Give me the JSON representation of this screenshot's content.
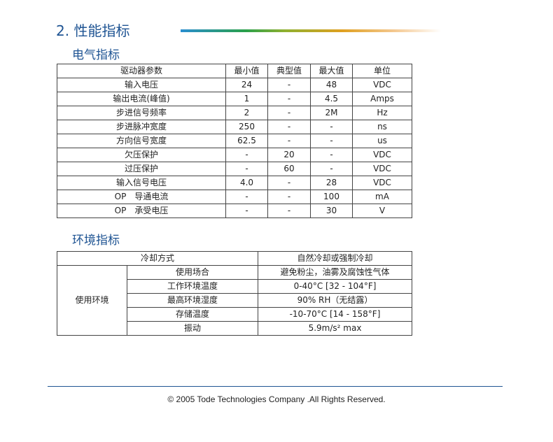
{
  "title": "2. 性能指标",
  "electrical": {
    "heading": "电气指标",
    "headers": [
      "驱动器参数",
      "最小值",
      "典型值",
      "最大值",
      "单位"
    ],
    "rows": [
      [
        "输入电压",
        "24",
        "-",
        "48",
        "VDC"
      ],
      [
        "输出电流(峰值)",
        "1",
        "-",
        "4.5",
        "Amps"
      ],
      [
        "步进信号频率",
        "2",
        "-",
        "2M",
        "Hz"
      ],
      [
        "步进脉冲宽度",
        "250",
        "-",
        "-",
        "ns"
      ],
      [
        "方向信号宽度",
        "62.5",
        "-",
        "-",
        "us"
      ],
      [
        "欠压保护",
        "-",
        "20",
        "-",
        "VDC"
      ],
      [
        "过压保护",
        "-",
        "60",
        "-",
        "VDC"
      ],
      [
        "输入信号电压",
        "4.0",
        "-",
        "28",
        "VDC"
      ],
      [
        "OP　导通电流",
        "-",
        "-",
        "100",
        "mA"
      ],
      [
        "OP　承受电压",
        "-",
        "-",
        "30",
        "V"
      ]
    ]
  },
  "environment": {
    "heading": "环境指标",
    "cooling_label": "冷却方式",
    "cooling_value": "自然冷却或强制冷却",
    "group_label": "使用环境",
    "rows": [
      [
        "使用场合",
        "避免粉尘，油雾及腐蚀性气体"
      ],
      [
        "工作环境温度",
        "0-40°C [32 - 104°F]"
      ],
      [
        "最高环境湿度",
        "90% RH（无结露）"
      ],
      [
        "存储温度",
        "-10-70°C [14 - 158°F]"
      ],
      [
        "振动",
        "5.9m/s² max"
      ]
    ]
  },
  "footer": "©  2005 Tode Technologies Company .All Rights Reserved."
}
